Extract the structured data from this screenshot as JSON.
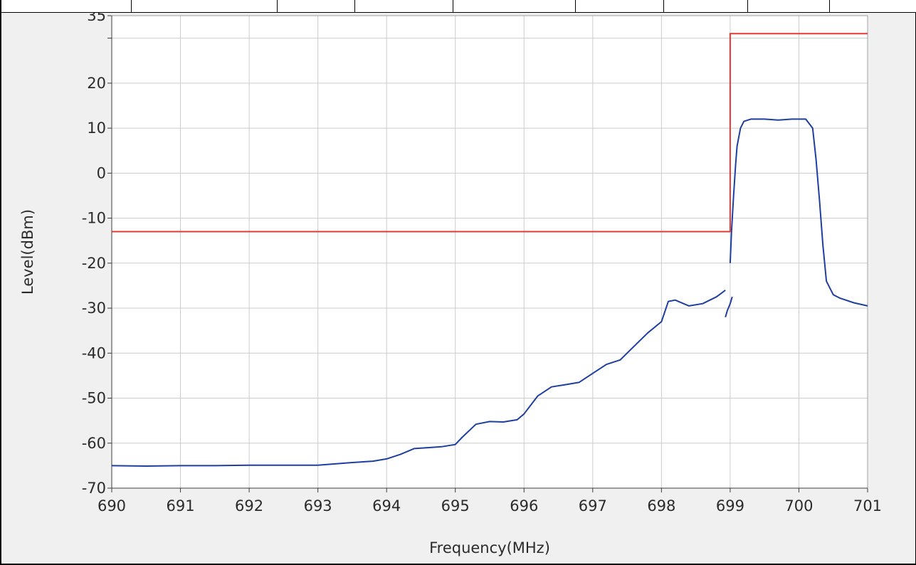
{
  "colors": {
    "panel_background": "#f0f0f0",
    "plot_background": "#ffffff",
    "grid": "#cccccc",
    "axis": "#3c3c3c",
    "measured_trace": "#1f3fa0",
    "limit_mask": "#e53935"
  },
  "chart_data": {
    "type": "line",
    "xlabel": "Frequency(MHz)",
    "ylabel": "Level(dBm)",
    "xlim": [
      690,
      701
    ],
    "ylim": [
      -70,
      35
    ],
    "x_ticks": [
      690,
      691,
      692,
      693,
      694,
      695,
      696,
      697,
      698,
      699,
      700,
      701
    ],
    "y_ticks": [
      35,
      20,
      10,
      0,
      -10,
      -20,
      -30,
      -40,
      -50,
      -60,
      -70
    ],
    "y_minor_ticks": [
      30
    ],
    "grid": true,
    "legend": "none",
    "series": [
      {
        "color": "#1f3fa0",
        "segments": [
          {
            "x": [
              690.0,
              690.5,
              691.0,
              691.5,
              692.0,
              692.5,
              693.0,
              693.5,
              693.8,
              694.0,
              694.2,
              694.4,
              694.6,
              694.8,
              695.0,
              695.1,
              695.3,
              695.5,
              695.7,
              695.9,
              696.0,
              696.2,
              696.4,
              696.6,
              696.8,
              697.0,
              697.2,
              697.4,
              697.6,
              697.8,
              698.0,
              698.1,
              698.2,
              698.4,
              698.6,
              698.8,
              698.93
            ],
            "y": [
              -65.0,
              -65.1,
              -65.0,
              -65.0,
              -64.9,
              -64.9,
              -64.9,
              -64.3,
              -64.0,
              -63.5,
              -62.5,
              -61.2,
              -61.0,
              -60.8,
              -60.3,
              -58.7,
              -55.8,
              -55.2,
              -55.3,
              -54.8,
              -53.5,
              -49.5,
              -47.5,
              -47.0,
              -46.5,
              -44.5,
              -42.5,
              -41.5,
              -38.5,
              -35.5,
              -33.0,
              -28.5,
              -28.2,
              -29.5,
              -29.0,
              -27.5,
              -26.0
            ]
          },
          {
            "x": [
              698.93,
              698.96,
              699.0,
              699.03
            ],
            "y": [
              -32.0,
              -30.5,
              -29.0,
              -27.5
            ]
          },
          {
            "x": [
              699.0,
              699.02,
              699.05,
              699.08,
              699.1,
              699.15,
              699.2,
              699.3,
              699.5,
              699.7,
              699.9,
              700.1,
              700.2,
              700.25,
              700.3,
              700.35,
              700.4,
              700.5,
              700.6,
              700.8,
              701.0
            ],
            "y": [
              -20.0,
              -13.0,
              -5.0,
              2.0,
              6.0,
              10.0,
              11.5,
              12.0,
              12.0,
              11.8,
              12.0,
              12.0,
              10.0,
              3.0,
              -6.0,
              -16.0,
              -24.0,
              -27.0,
              -27.8,
              -28.8,
              -29.5
            ]
          }
        ]
      },
      {
        "color": "#e53935",
        "segments": [
          {
            "x": [
              690.0,
              699.0,
              699.0,
              701.0
            ],
            "y": [
              -13.0,
              -13.0,
              31.0,
              31.0
            ]
          }
        ]
      }
    ]
  }
}
